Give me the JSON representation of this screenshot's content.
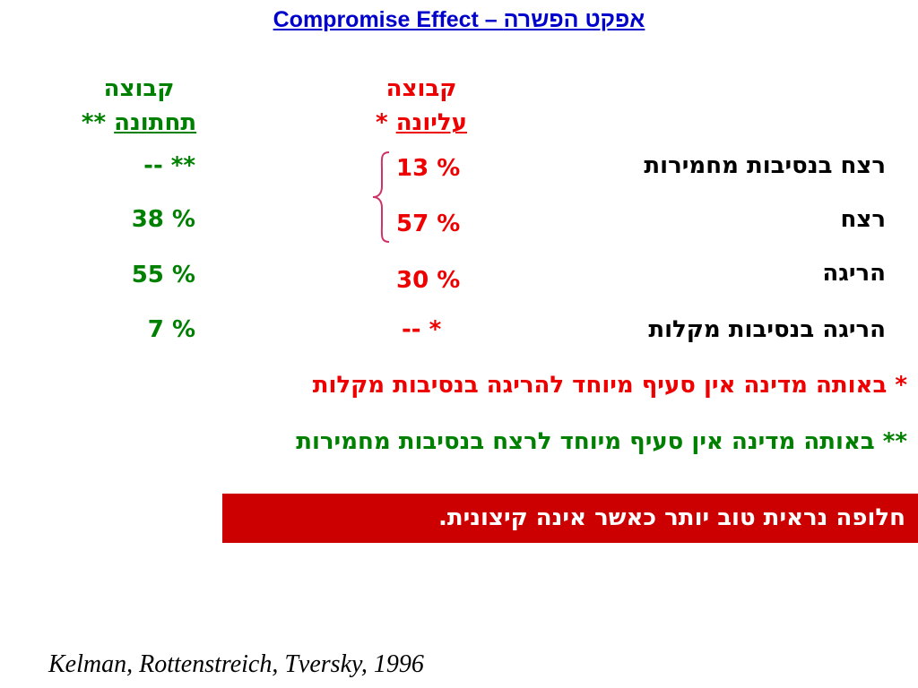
{
  "title": "Compromise Effect – אפקט הפשרה",
  "groups": {
    "lower": {
      "line1": "קבוצה",
      "line2_underlined": "תחתונה",
      "line2_mark": "**"
    },
    "upper": {
      "line1": "קבוצה",
      "line2_underlined": "עליונה",
      "line2_mark": "*"
    }
  },
  "rows": [
    {
      "label": "רצח בנסיבות מחמירות",
      "lower": "-- **",
      "upper": "13 %"
    },
    {
      "label": "רצח",
      "lower": "38 %",
      "upper": "57 %"
    },
    {
      "label": "הריגה",
      "lower": "55 %",
      "upper": "30 %"
    },
    {
      "label": "הריגה בנסיבות מקלות",
      "lower": "7 %",
      "upper": "-- *"
    }
  ],
  "notes": [
    {
      "text": "* באותה מדינה אין סעיף מיוחד להריגה בנסיבות מקלות",
      "color": "#ee0000"
    },
    {
      "text": "** באותה מדינה אין סעיף מיוחד לרצח בנסיבות מחמירות",
      "color": "#008000"
    }
  ],
  "highlight": "חלופה נראית טוב יותר כאשר אינה קיצונית.",
  "citation": "Kelman, Rottenstreich, Tversky, 1996",
  "colors": {
    "title": "#0000cc",
    "lower_group": "#008000",
    "upper_group": "#ee0000",
    "highlight_bg": "#cc0000",
    "brace": "#cc3366"
  }
}
